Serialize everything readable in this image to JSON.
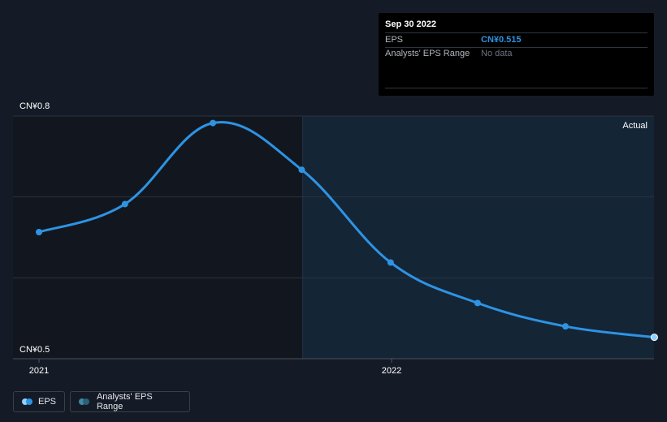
{
  "colors": {
    "background": "#151b26",
    "past_band": "#12171f",
    "forecast_band": "#142536",
    "eps_line": "#2e93e3",
    "eps_value": "#2e93e3",
    "grid": "#2c333d",
    "axis_text": "#ffffff",
    "tooltip_muted": "#6b7280",
    "range_dot": "#2c5f7a"
  },
  "tooltip": {
    "date": "Sep 30 2022",
    "rows": [
      {
        "label": "EPS",
        "value": "CN¥0.515"
      },
      {
        "label": "Analysts' EPS Range",
        "value": "No data"
      }
    ]
  },
  "legend": {
    "items": [
      {
        "label": "EPS",
        "icon": "eps-dot-icon"
      },
      {
        "label": "Analysts' EPS Range",
        "icon": "range-dot-icon"
      }
    ]
  },
  "chart_data": {
    "type": "line",
    "ylabels": [
      "CN¥0.8",
      "CN¥0.5"
    ],
    "ylim": [
      0.5,
      0.8
    ],
    "xlabels": [
      {
        "label": "2021",
        "x": "2021-01-01"
      },
      {
        "label": "2022",
        "x": "2022-01-01"
      }
    ],
    "xlim": [
      "2021-01-01",
      "2022-10-01"
    ],
    "highlight_label": "Actual",
    "highlight_from": "2021-10-01",
    "grid": true,
    "series": [
      {
        "name": "EPS",
        "points": [
          {
            "x": "2021-01-01",
            "y": 0.65
          },
          {
            "x": "2021-03-31",
            "y": 0.686
          },
          {
            "x": "2021-06-30",
            "y": 0.79
          },
          {
            "x": "2021-09-30",
            "y": 0.73
          },
          {
            "x": "2021-12-31",
            "y": 0.611
          },
          {
            "x": "2022-03-31",
            "y": 0.559
          },
          {
            "x": "2022-06-30",
            "y": 0.529
          },
          {
            "x": "2022-09-30",
            "y": 0.515
          }
        ]
      }
    ]
  }
}
